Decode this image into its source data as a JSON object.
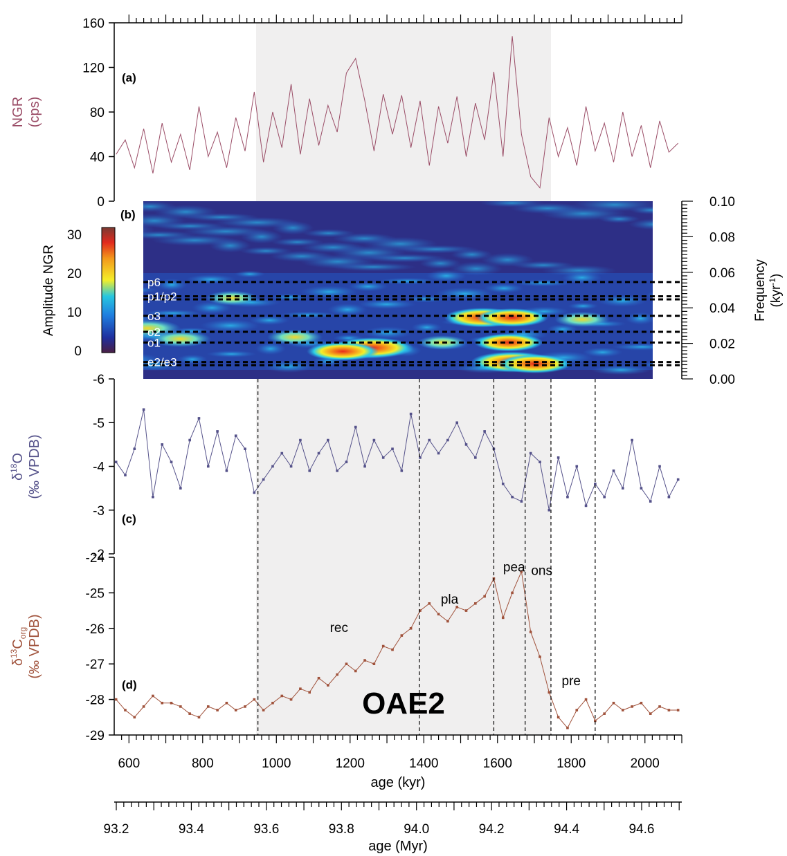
{
  "colors": {
    "ngr": "#9a4c66",
    "d18o": "#55528a",
    "d13c": "#a0523b",
    "shade": "#f0efef",
    "axis": "#000000"
  },
  "panels": {
    "a": "(a)",
    "b": "(b)",
    "c": "(c)",
    "d": "(d)"
  },
  "x_axis": {
    "kyr_label": "age (kyr)",
    "kyr_ticks": [
      "600",
      "800",
      "1000",
      "1200",
      "1400",
      "1600",
      "1800",
      "2000"
    ],
    "myr_label": "age (Myr)",
    "myr_ticks": [
      "93.2",
      "93.4",
      "93.6",
      "93.8",
      "94.0",
      "94.2",
      "94.4",
      "94.6"
    ]
  },
  "event_label": "OAE2",
  "colorbar_icon": "colorbar-gradient",
  "chart_data": [
    {
      "id": "ngr",
      "type": "line",
      "ylabel_line1": "NGR",
      "ylabel_line2": "(cps)",
      "ylim": [
        0,
        160
      ],
      "yticks": [
        0,
        40,
        80,
        120,
        160
      ],
      "xlim": [
        560,
        2100
      ],
      "shaded_interval": [
        945,
        1745
      ],
      "x": [
        565,
        590,
        615,
        640,
        665,
        690,
        715,
        740,
        765,
        790,
        815,
        840,
        865,
        890,
        915,
        940,
        965,
        990,
        1015,
        1040,
        1065,
        1090,
        1115,
        1140,
        1165,
        1190,
        1215,
        1240,
        1265,
        1290,
        1315,
        1340,
        1365,
        1390,
        1415,
        1440,
        1465,
        1490,
        1515,
        1540,
        1565,
        1590,
        1615,
        1640,
        1665,
        1690,
        1715,
        1740,
        1765,
        1790,
        1815,
        1840,
        1865,
        1890,
        1915,
        1940,
        1965,
        1990,
        2015,
        2040,
        2065,
        2090
      ],
      "values": [
        42,
        55,
        30,
        65,
        25,
        70,
        35,
        60,
        28,
        85,
        40,
        62,
        30,
        75,
        45,
        98,
        35,
        80,
        48,
        105,
        42,
        92,
        50,
        86,
        62,
        115,
        128,
        90,
        45,
        96,
        60,
        95,
        48,
        90,
        32,
        85,
        52,
        94,
        40,
        88,
        55,
        116,
        40,
        148,
        60,
        22,
        12,
        75,
        40,
        66,
        32,
        85,
        45,
        70,
        35,
        80,
        40,
        68,
        30,
        72,
        44,
        52
      ]
    },
    {
      "id": "wavelet",
      "type": "heatmap",
      "ylabel": "Amplitude NGR",
      "colorbar_ticks": [
        "0",
        "10",
        "20",
        "30"
      ],
      "right_label": "Frequency",
      "right_unit": "(kyr",
      "right_unit_sup": "-1",
      "right_unit_close": ")",
      "right_ticks": [
        "0.00",
        "0.02",
        "0.04",
        "0.06",
        "0.08",
        "0.10"
      ],
      "ylim": [
        0,
        0.1
      ],
      "bands": [
        {
          "label": "p6",
          "freq": 0.0545
        },
        {
          "label": "p1/p2",
          "freq": 0.0465
        },
        {
          "label": "o3",
          "freq": 0.0355
        },
        {
          "label": "o2",
          "freq": 0.0265
        },
        {
          "label": "o1",
          "freq": 0.0205
        },
        {
          "label": "e2/e3",
          "freq": 0.0095
        }
      ],
      "hotspots": [
        {
          "age": 1260,
          "freq": 0.0175,
          "amp": 1.0
        },
        {
          "age": 1180,
          "freq": 0.0155,
          "amp": 0.8
        },
        {
          "age": 650,
          "freq": 0.0285,
          "amp": 0.7
        },
        {
          "age": 740,
          "freq": 0.0225,
          "amp": 0.6
        },
        {
          "age": 1050,
          "freq": 0.0235,
          "amp": 0.5
        },
        {
          "age": 1560,
          "freq": 0.0345,
          "amp": 0.9
        },
        {
          "age": 1640,
          "freq": 0.0345,
          "amp": 0.8
        },
        {
          "age": 1640,
          "freq": 0.0095,
          "amp": 1.0
        },
        {
          "age": 1700,
          "freq": 0.0085,
          "amp": 0.85
        },
        {
          "age": 1630,
          "freq": 0.0205,
          "amp": 0.75
        },
        {
          "age": 1830,
          "freq": 0.0335,
          "amp": 0.5
        },
        {
          "age": 880,
          "freq": 0.0455,
          "amp": 0.45
        },
        {
          "age": 1450,
          "freq": 0.0205,
          "amp": 0.4
        }
      ]
    },
    {
      "id": "d18o",
      "type": "line",
      "ylabel_symbol": "δ",
      "ylabel_sup": "18",
      "ylabel_species": "O",
      "ylabel_unit": "(‰ VPDB)",
      "ylim": [
        -6,
        -2
      ],
      "reversed": true,
      "yticks": [
        -6,
        -5,
        -4,
        -3,
        -2
      ],
      "x": [
        565,
        590,
        615,
        640,
        665,
        690,
        715,
        740,
        765,
        790,
        815,
        840,
        865,
        890,
        915,
        940,
        965,
        990,
        1015,
        1040,
        1065,
        1090,
        1115,
        1140,
        1165,
        1190,
        1215,
        1240,
        1265,
        1290,
        1315,
        1340,
        1365,
        1390,
        1415,
        1440,
        1465,
        1490,
        1515,
        1540,
        1565,
        1590,
        1615,
        1640,
        1665,
        1690,
        1715,
        1740,
        1765,
        1790,
        1815,
        1840,
        1865,
        1890,
        1915,
        1940,
        1965,
        1990,
        2015,
        2040,
        2065,
        2090
      ],
      "values": [
        -4.1,
        -3.8,
        -4.4,
        -5.3,
        -3.3,
        -4.5,
        -4.1,
        -3.5,
        -4.6,
        -5.1,
        -4.0,
        -4.8,
        -3.9,
        -4.7,
        -4.4,
        -3.4,
        -3.7,
        -4.0,
        -4.3,
        -4.0,
        -4.6,
        -3.9,
        -4.3,
        -4.6,
        -3.9,
        -4.1,
        -4.9,
        -4.0,
        -4.6,
        -4.2,
        -4.4,
        -3.9,
        -5.2,
        -4.2,
        -4.6,
        -4.3,
        -4.6,
        -5.0,
        -4.5,
        -4.2,
        -4.8,
        -4.4,
        -3.6,
        -3.3,
        -3.2,
        -4.3,
        -4.1,
        -3.0,
        -4.2,
        -3.3,
        -4.0,
        -3.1,
        -3.6,
        -3.3,
        -3.9,
        -3.5,
        -4.6,
        -3.5,
        -3.2,
        -4.0,
        -3.3,
        -3.7
      ]
    },
    {
      "id": "d13c",
      "type": "line",
      "ylabel_symbol": "δ",
      "ylabel_sup": "13",
      "ylabel_species": "C",
      "ylabel_sub": "org",
      "ylabel_unit": "(‰ VPDB)",
      "ylim": [
        -29,
        -24
      ],
      "yticks": [
        -29,
        -28,
        -27,
        -26,
        -25,
        -24
      ],
      "x": [
        565,
        590,
        615,
        640,
        665,
        690,
        715,
        740,
        765,
        790,
        815,
        840,
        865,
        890,
        915,
        940,
        965,
        990,
        1015,
        1040,
        1065,
        1090,
        1115,
        1140,
        1165,
        1190,
        1215,
        1240,
        1265,
        1290,
        1315,
        1340,
        1365,
        1390,
        1415,
        1440,
        1465,
        1490,
        1515,
        1540,
        1565,
        1590,
        1615,
        1640,
        1665,
        1690,
        1715,
        1740,
        1765,
        1790,
        1815,
        1840,
        1865,
        1890,
        1915,
        1940,
        1965,
        1990,
        2015,
        2040,
        2065,
        2090
      ],
      "values": [
        -28.0,
        -28.3,
        -28.5,
        -28.2,
        -27.9,
        -28.1,
        -28.1,
        -28.2,
        -28.4,
        -28.5,
        -28.2,
        -28.3,
        -28.1,
        -28.3,
        -28.2,
        -28.0,
        -28.3,
        -28.1,
        -27.9,
        -28.0,
        -27.7,
        -27.8,
        -27.4,
        -27.6,
        -27.3,
        -27.0,
        -27.2,
        -26.9,
        -27.0,
        -26.5,
        -26.6,
        -26.2,
        -26.0,
        -25.5,
        -25.3,
        -25.6,
        -25.8,
        -25.4,
        -25.5,
        -25.3,
        -25.1,
        -24.6,
        -25.7,
        -25.0,
        -24.4,
        -26.1,
        -26.8,
        -27.8,
        -28.5,
        -28.8,
        -28.3,
        -28.0,
        -28.6,
        -28.4,
        -28.1,
        -28.3,
        -28.2,
        -28.1,
        -28.4,
        -28.2,
        -28.3,
        -28.3
      ]
    }
  ],
  "stage_lines": [
    950,
    1388,
    1590,
    1675,
    1745,
    1865
  ],
  "stage_labels": [
    {
      "label": "rec",
      "age": 1170,
      "value": -26.1
    },
    {
      "label": "pla",
      "age": 1470,
      "value": -25.3
    },
    {
      "label": "pea",
      "age": 1645,
      "value": -24.4
    },
    {
      "label": "ons",
      "age": 1720,
      "value": -24.5
    },
    {
      "label": "pre",
      "age": 1800,
      "value": -27.6
    }
  ]
}
